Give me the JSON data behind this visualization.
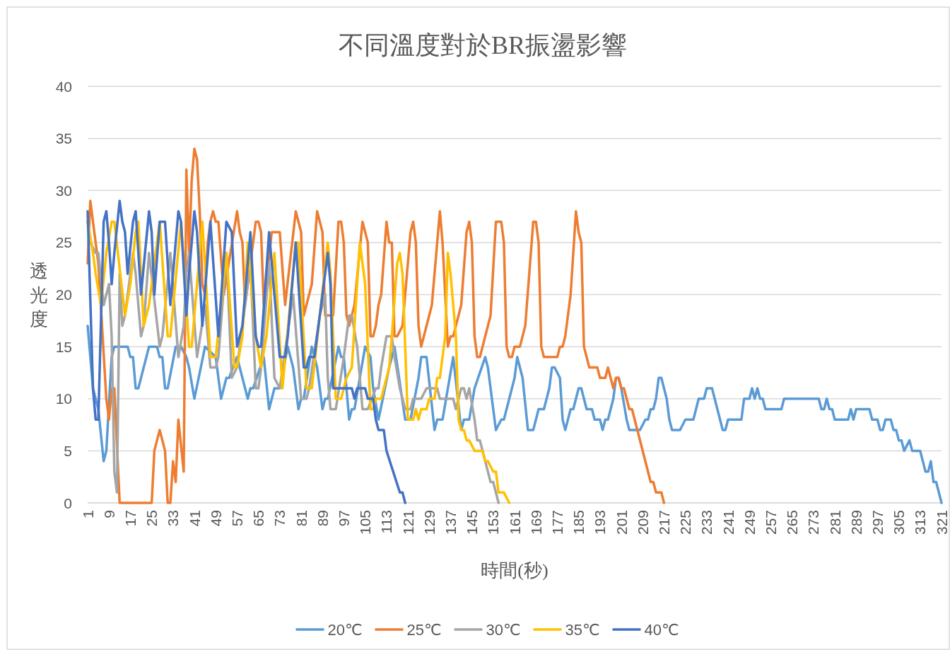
{
  "chart_data": {
    "type": "line",
    "title": "不同溫度對於BR振盪影響",
    "xlabel": "時間(秒)",
    "ylabel": "透光度",
    "xlim": [
      1,
      321
    ],
    "xticks": [
      1,
      9,
      17,
      25,
      33,
      41,
      49,
      57,
      65,
      73,
      81,
      89,
      97,
      105,
      113,
      121,
      129,
      137,
      145,
      153,
      161,
      169,
      177,
      185,
      193,
      201,
      209,
      217,
      225,
      233,
      241,
      249,
      257,
      265,
      273,
      281,
      289,
      297,
      305,
      313,
      321
    ],
    "ylim": [
      0,
      40
    ],
    "yticks": [
      0,
      5,
      10,
      15,
      20,
      25,
      30,
      35,
      40
    ],
    "grid": "y",
    "legend": "bottom",
    "series": [
      {
        "name": "20℃",
        "color": "#5b9bd5",
        "x": [
          1,
          3,
          4,
          5,
          7,
          8,
          10,
          11,
          16,
          17,
          18,
          19,
          20,
          24,
          27,
          28,
          29,
          30,
          31,
          34,
          36,
          38,
          39,
          41,
          45,
          49,
          51,
          53,
          54,
          57,
          61,
          62,
          63,
          67,
          69,
          71,
          73,
          76,
          78,
          80,
          81,
          82,
          85,
          87,
          89,
          90,
          91,
          95,
          96,
          97,
          99,
          100,
          101,
          105,
          107,
          108,
          110,
          114,
          116,
          120,
          122,
          125,
          126,
          128,
          131,
          132,
          134,
          138,
          141,
          142,
          144,
          146,
          150,
          151,
          154,
          156,
          157,
          161,
          162,
          164,
          166,
          168,
          169,
          170,
          172,
          174,
          175,
          176,
          178,
          179,
          180,
          182,
          183,
          185,
          186,
          188,
          190,
          191,
          193,
          194,
          195,
          196,
          198,
          199,
          200,
          201,
          203,
          204,
          208,
          210,
          211,
          212,
          213,
          214,
          215,
          216,
          218,
          219,
          220,
          223,
          225,
          228,
          230,
          232,
          233,
          235,
          236,
          238,
          239,
          240,
          241,
          245,
          246,
          247,
          249,
          250,
          251,
          252,
          253,
          254,
          255,
          261,
          262,
          275,
          276,
          277,
          278,
          279,
          280,
          281,
          286,
          287,
          288,
          289,
          294,
          295,
          297,
          298,
          299,
          300,
          302,
          303,
          304,
          305,
          306,
          307,
          309,
          310,
          313,
          315,
          316,
          317,
          318,
          319,
          321
        ],
        "values": [
          17,
          11,
          10,
          9,
          4,
          5,
          14,
          15,
          15,
          14,
          14,
          11,
          11,
          15,
          15,
          14,
          14,
          11,
          11,
          15,
          15,
          14,
          13,
          10,
          15,
          14,
          10,
          12,
          12,
          14,
          10,
          11,
          11,
          14,
          9,
          11,
          11,
          15,
          13,
          9,
          10,
          10,
          15,
          13,
          9,
          10,
          10,
          15,
          14,
          14,
          8,
          9,
          9,
          15,
          14,
          11,
          8,
          13,
          15,
          8,
          8,
          12,
          14,
          14,
          7,
          8,
          8,
          14,
          7,
          8,
          8,
          11,
          14,
          13,
          7,
          8,
          8,
          12,
          14,
          12,
          7,
          7,
          8,
          9,
          9,
          11,
          13,
          13,
          12,
          8,
          7,
          9,
          9,
          11,
          11,
          9,
          9,
          8,
          8,
          7,
          8,
          8,
          10,
          12,
          12,
          11,
          8,
          7,
          7,
          8,
          8,
          9,
          9,
          10,
          12,
          12,
          10,
          8,
          7,
          7,
          8,
          8,
          10,
          10,
          11,
          11,
          10,
          8,
          7,
          7,
          8,
          8,
          8,
          10,
          10,
          11,
          10,
          11,
          10,
          10,
          9,
          9,
          10,
          10,
          9,
          9,
          10,
          9,
          9,
          8,
          8,
          9,
          8,
          9,
          9,
          8,
          8,
          7,
          7,
          8,
          8,
          7,
          7,
          6,
          6,
          5,
          6,
          5,
          5,
          3,
          3,
          4,
          2,
          2,
          0
        ]
      },
      {
        "name": "25℃",
        "color": "#ed7d31",
        "x": [
          1,
          2,
          3,
          5,
          8,
          9,
          10,
          11,
          13,
          25,
          26,
          28,
          30,
          31,
          32,
          33,
          34,
          35,
          37,
          38,
          39,
          40,
          41,
          42,
          43,
          44,
          45,
          46,
          47,
          48,
          49,
          50,
          52,
          57,
          58,
          59,
          60,
          64,
          65,
          66,
          67,
          70,
          73,
          75,
          79,
          81,
          82,
          85,
          87,
          89,
          90,
          93,
          95,
          96,
          97,
          98,
          99,
          101,
          104,
          106,
          107,
          108,
          109,
          110,
          111,
          113,
          114,
          115,
          116,
          117,
          119,
          120,
          122,
          123,
          124,
          125,
          126,
          130,
          133,
          134,
          136,
          137,
          138,
          141,
          143,
          144,
          145,
          146,
          147,
          148,
          152,
          154,
          156,
          157,
          158,
          159,
          160,
          161,
          163,
          165,
          168,
          169,
          170,
          171,
          172,
          177,
          178,
          179,
          180,
          182,
          184,
          185,
          186,
          187,
          188,
          189,
          192,
          193,
          195,
          196,
          198,
          199,
          200,
          201,
          202,
          204,
          205,
          212,
          213,
          214,
          216,
          217
        ],
        "values": [
          23,
          29,
          27,
          23,
          10,
          8,
          11,
          11,
          0,
          0,
          5,
          7,
          5,
          0,
          0,
          4,
          2,
          8,
          3,
          32,
          24,
          31,
          34,
          33,
          28,
          21,
          20,
          25,
          27,
          28,
          27,
          27,
          20,
          28,
          26,
          25,
          19,
          27,
          27,
          26,
          19,
          26,
          26,
          19,
          28,
          26,
          18,
          21,
          28,
          26,
          18,
          18,
          27,
          27,
          25,
          18,
          17,
          19,
          27,
          25,
          16,
          16,
          17,
          19,
          20,
          27,
          25,
          25,
          16,
          16,
          17,
          20,
          26,
          27,
          25,
          17,
          15,
          19,
          28,
          25,
          15,
          16,
          16,
          19,
          26,
          27,
          25,
          16,
          14,
          14,
          18,
          27,
          27,
          25,
          15,
          14,
          14,
          15,
          15,
          17,
          27,
          27,
          25,
          15,
          14,
          14,
          15,
          15,
          16,
          20,
          28,
          26,
          25,
          15,
          14,
          13,
          13,
          12,
          12,
          13,
          11,
          12,
          12,
          11,
          11,
          9,
          9,
          2,
          2,
          1,
          1,
          0
        ]
      },
      {
        "name": "30℃",
        "color": "#a5a5a5",
        "x": [
          1,
          2,
          4,
          5,
          7,
          9,
          10,
          11,
          12,
          13,
          14,
          15,
          18,
          19,
          21,
          22,
          24,
          28,
          29,
          32,
          35,
          37,
          38,
          39,
          42,
          45,
          47,
          49,
          50,
          53,
          55,
          57,
          62,
          64,
          65,
          66,
          69,
          71,
          73,
          78,
          81,
          83,
          84,
          88,
          90,
          91,
          92,
          94,
          97,
          99,
          100,
          102,
          104,
          106,
          109,
          110,
          111,
          113,
          115,
          116,
          118,
          120,
          122,
          123,
          126,
          128,
          132,
          133,
          138,
          139,
          141,
          142,
          143,
          144,
          146,
          147,
          148,
          150,
          152,
          153,
          155
        ],
        "values": [
          27,
          25,
          24,
          24,
          19,
          21,
          16,
          3,
          1,
          22,
          17,
          18,
          24,
          22,
          16,
          17,
          24,
          15,
          16,
          24,
          14,
          17,
          22,
          24,
          14,
          19,
          13,
          13,
          14,
          24,
          12,
          13,
          23,
          11,
          11,
          13,
          23,
          12,
          11,
          20,
          10,
          10,
          11,
          18,
          20,
          12,
          9,
          9,
          14,
          18,
          18,
          15,
          9,
          9,
          11,
          11,
          13,
          16,
          16,
          14,
          11,
          9,
          9,
          10,
          10,
          11,
          11,
          10,
          10,
          9,
          11,
          11,
          10,
          11,
          8,
          6,
          6,
          4,
          2,
          2,
          0
        ]
      },
      {
        "name": "35℃",
        "color": "#ffc000",
        "x": [
          1,
          3,
          4,
          6,
          8,
          10,
          11,
          15,
          17,
          19,
          20,
          22,
          24,
          28,
          31,
          32,
          36,
          39,
          40,
          44,
          47,
          49,
          53,
          56,
          57,
          59,
          61,
          64,
          66,
          68,
          71,
          74,
          79,
          80,
          83,
          85,
          91,
          92,
          94,
          96,
          98,
          100,
          103,
          105,
          107,
          108,
          109,
          111,
          114,
          115,
          117,
          118,
          119,
          121,
          123,
          124,
          125,
          126,
          128,
          129,
          131,
          132,
          133,
          135,
          136,
          137,
          139,
          140,
          141,
          142,
          143,
          144,
          146,
          149,
          150,
          151,
          153,
          154,
          155,
          157,
          159
        ],
        "values": [
          27,
          24,
          22,
          19,
          24,
          27,
          27,
          18,
          21,
          26,
          27,
          17,
          19,
          27,
          16,
          16,
          27,
          15,
          15,
          27,
          14,
          14,
          24,
          13,
          13,
          16,
          25,
          16,
          13,
          16,
          24,
          11,
          25,
          25,
          11,
          11,
          25,
          22,
          10,
          10,
          12,
          13,
          25,
          21,
          9,
          9,
          10,
          10,
          13,
          16,
          23,
          24,
          22,
          8,
          8,
          9,
          8,
          9,
          9,
          10,
          10,
          12,
          12,
          16,
          24,
          22,
          16,
          8,
          7,
          7,
          6,
          6,
          5,
          5,
          4,
          4,
          3,
          3,
          1,
          1,
          0
        ]
      },
      {
        "name": "40℃",
        "color": "#4472c4",
        "x": [
          1,
          3,
          4,
          5,
          7,
          8,
          9,
          10,
          11,
          13,
          14,
          15,
          16,
          18,
          19,
          21,
          24,
          25,
          26,
          28,
          30,
          32,
          35,
          36,
          38,
          39,
          41,
          42,
          44,
          47,
          50,
          53,
          55,
          57,
          59,
          62,
          64,
          65,
          66,
          69,
          73,
          75,
          76,
          79,
          82,
          83,
          84,
          86,
          91,
          92,
          93,
          100,
          101,
          102,
          105,
          106,
          108,
          109,
          110,
          112,
          113,
          118,
          119,
          120
        ],
        "values": [
          28,
          11,
          8,
          8,
          27,
          28,
          25,
          21,
          24,
          29,
          27,
          26,
          22,
          27,
          28,
          20,
          28,
          26,
          20,
          27,
          27,
          19,
          28,
          27,
          18,
          22,
          28,
          26,
          17,
          27,
          16,
          27,
          26,
          15,
          17,
          26,
          16,
          15,
          15,
          26,
          14,
          14,
          16,
          25,
          13,
          13,
          14,
          14,
          24,
          21,
          11,
          11,
          10,
          11,
          11,
          10,
          10,
          8,
          7,
          7,
          5,
          1,
          1,
          0
        ]
      }
    ]
  }
}
